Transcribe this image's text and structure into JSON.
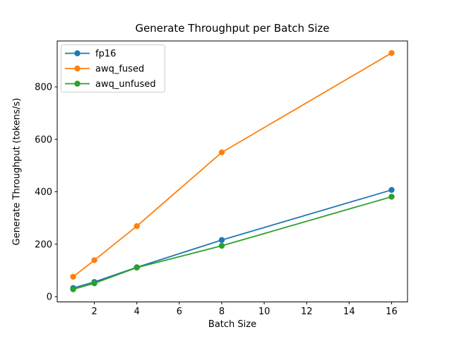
{
  "chart_data": {
    "type": "line",
    "title": "Generate Throughput per Batch Size",
    "xlabel": "Batch Size",
    "ylabel": "Generate Throughput (tokens/s)",
    "x": [
      1,
      2,
      4,
      8,
      16
    ],
    "series": [
      {
        "name": "fp16",
        "color": "#1f77b4",
        "values": [
          33,
          56,
          112,
          216,
          407
        ]
      },
      {
        "name": "awq_fused",
        "color": "#ff7f0e",
        "values": [
          76,
          139,
          269,
          550,
          929
        ]
      },
      {
        "name": "awq_unfused",
        "color": "#2ca02c",
        "values": [
          28,
          51,
          111,
          194,
          381
        ]
      }
    ],
    "xticks": [
      2,
      4,
      6,
      8,
      10,
      12,
      14,
      16
    ],
    "yticks": [
      0,
      200,
      400,
      600,
      800
    ],
    "xlim": [
      0.25,
      16.75
    ],
    "ylim": [
      -20,
      975
    ],
    "grid": false,
    "marker": "o",
    "legend_position": "upper left",
    "background_color": "#ffffff",
    "axis_color": "#000000",
    "legend_border_color": "#cccccc"
  }
}
